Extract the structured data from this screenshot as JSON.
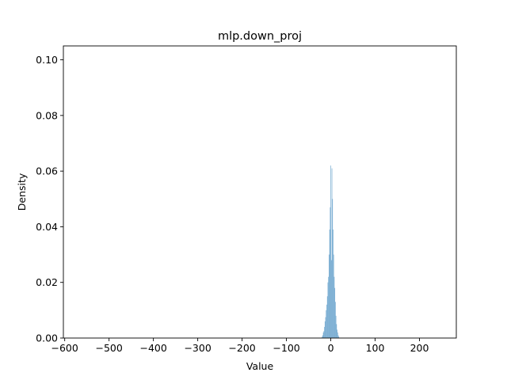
{
  "chart_data": {
    "type": "histogram",
    "title": "mlp.down_proj",
    "xlabel": "Value",
    "ylabel": "Density",
    "xlim": [
      -603,
      283
    ],
    "ylim": [
      0,
      0.105
    ],
    "x_ticks": [
      -600,
      -500,
      -400,
      -300,
      -200,
      -100,
      0,
      100,
      200
    ],
    "x_tick_labels": [
      "−600",
      "−500",
      "−400",
      "−300",
      "−200",
      "−100",
      "0",
      "100",
      "200"
    ],
    "y_ticks": [
      0.0,
      0.02,
      0.04,
      0.06,
      0.08,
      0.1
    ],
    "y_tick_labels": [
      "0.00",
      "0.02",
      "0.04",
      "0.06",
      "0.08",
      "0.10"
    ],
    "grid": false,
    "bar_color": "#1f77b4",
    "bar_opacity": 0.6,
    "bin_width": 1.3,
    "bins": [
      {
        "x": -19.5,
        "density": 0.0005
      },
      {
        "x": -18.2,
        "density": 0.001
      },
      {
        "x": -16.9,
        "density": 0.002
      },
      {
        "x": -15.6,
        "density": 0.0025
      },
      {
        "x": -14.3,
        "density": 0.004
      },
      {
        "x": -13.0,
        "density": 0.006
      },
      {
        "x": -11.7,
        "density": 0.0075
      },
      {
        "x": -10.4,
        "density": 0.01
      },
      {
        "x": -9.1,
        "density": 0.012
      },
      {
        "x": -7.8,
        "density": 0.015
      },
      {
        "x": -6.5,
        "density": 0.02
      },
      {
        "x": -5.2,
        "density": 0.022
      },
      {
        "x": -3.9,
        "density": 0.03
      },
      {
        "x": -2.6,
        "density": 0.039
      },
      {
        "x": -1.3,
        "density": 0.047
      },
      {
        "x": 0.0,
        "density": 0.062
      },
      {
        "x": 1.3,
        "density": 0.028
      },
      {
        "x": 2.6,
        "density": 0.061
      },
      {
        "x": 3.9,
        "density": 0.05
      },
      {
        "x": 5.2,
        "density": 0.039
      },
      {
        "x": 6.5,
        "density": 0.03
      },
      {
        "x": 7.8,
        "density": 0.022
      },
      {
        "x": 9.1,
        "density": 0.018
      },
      {
        "x": 10.4,
        "density": 0.013
      },
      {
        "x": 11.7,
        "density": 0.008
      },
      {
        "x": 13.0,
        "density": 0.005
      },
      {
        "x": 14.3,
        "density": 0.003
      },
      {
        "x": 15.6,
        "density": 0.002
      },
      {
        "x": 16.9,
        "density": 0.001
      },
      {
        "x": 18.2,
        "density": 0.0005
      }
    ]
  }
}
